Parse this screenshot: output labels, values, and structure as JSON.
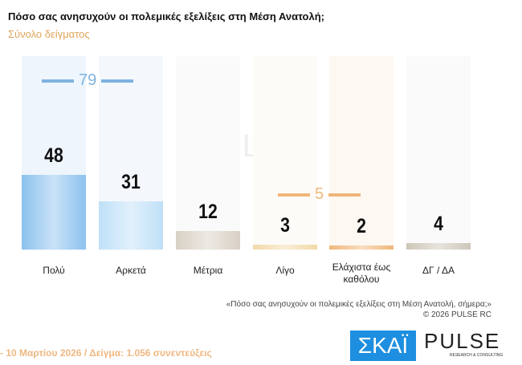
{
  "title": "Πόσο σας ανησυχούν οι πολεμικές εξελίξεις στη Μέση Ανατολή;",
  "subtitle": "Σύνολο δείγματος",
  "chart_data": {
    "type": "bar",
    "categories": [
      "Πολύ",
      "Αρκετά",
      "Μέτρια",
      "Λίγο",
      "Ελάχιστα έως καθόλου",
      "ΔΓ / ΔΑ"
    ],
    "values": [
      48,
      31,
      12,
      3,
      2,
      4
    ],
    "value_labels": [
      "48",
      "31",
      "12",
      "3",
      "2",
      "4"
    ],
    "groups": [
      {
        "label": "79",
        "value": 79,
        "color": "#7fb3e0"
      },
      {
        "label": "5",
        "value": 5,
        "color": "#f0b67a"
      }
    ],
    "colors": [
      "#8cc2ee",
      "#bfe0f7",
      "#d8d0c4",
      "#f2d9a8",
      "#f0b67a",
      "#cdc6b8"
    ],
    "ylim": [
      0,
      100
    ]
  },
  "watermark": {
    "brand": "PULSE",
    "tagline": "RESEARCH & CONSULTING"
  },
  "question_note": "«Πόσο σας ανησυχούν οι πολεμικές εξελίξεις στη Μέση Ανατολή, σήμερα;»",
  "copyright": "©  2026  PULSE RC",
  "footer": "- 10  Μαρτίου 2026  /  Δείγμα:  1.056 συνεντεύξεις",
  "logos": {
    "skai": "ΣΚΑΪ",
    "pulse": "PULSE",
    "pulse_sub": "RESEARCH & CONSULTING"
  }
}
